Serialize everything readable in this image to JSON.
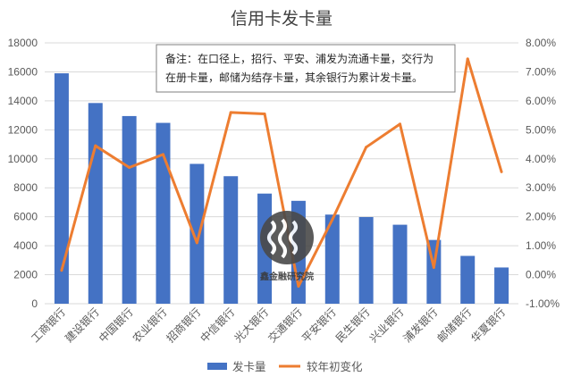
{
  "chart_data": {
    "type": "bar+line",
    "title": "信用卡发卡量",
    "categories": [
      "工商银行",
      "建设银行",
      "中国银行",
      "农业银行",
      "招商银行",
      "中信银行",
      "光大银行",
      "交通银行",
      "平安银行",
      "民生银行",
      "兴业银行",
      "浦发银行",
      "邮储银行",
      "华夏银行"
    ],
    "series": [
      {
        "name": "发卡量",
        "type": "bar",
        "axis": "left",
        "color": "#4472C4",
        "values": [
          15900,
          13850,
          12950,
          12480,
          9650,
          8800,
          7600,
          7100,
          6150,
          5980,
          5450,
          4400,
          3300,
          2500
        ]
      },
      {
        "name": "较年初变化",
        "type": "line",
        "axis": "right",
        "color": "#ED7D31",
        "values": [
          0.15,
          4.45,
          3.7,
          4.15,
          1.1,
          5.6,
          5.55,
          -0.4,
          1.9,
          4.4,
          5.2,
          0.25,
          7.45,
          3.55
        ]
      }
    ],
    "left_axis": {
      "min": 0,
      "max": 18000,
      "step": 2000,
      "tick_labels": [
        "0",
        "2000",
        "4000",
        "6000",
        "8000",
        "10000",
        "12000",
        "14000",
        "16000",
        "18000"
      ]
    },
    "right_axis": {
      "min": -1,
      "max": 8,
      "step": 1,
      "tick_labels": [
        "-1.00%",
        "0.00%",
        "1.00%",
        "2.00%",
        "3.00%",
        "4.00%",
        "5.00%",
        "6.00%",
        "7.00%",
        "8.00%"
      ]
    },
    "gridlines": true,
    "legend_position": "bottom",
    "annotation": {
      "lines": [
        "备注：在口径上，招行、平安、浦发为流通卡量，交行为",
        "在册卡量，邮储为结存卡量，其余银行为累计发卡量。"
      ]
    }
  },
  "watermark": {
    "text": "鑫金融研究院",
    "icon": "wave-circle-logo-icon"
  }
}
